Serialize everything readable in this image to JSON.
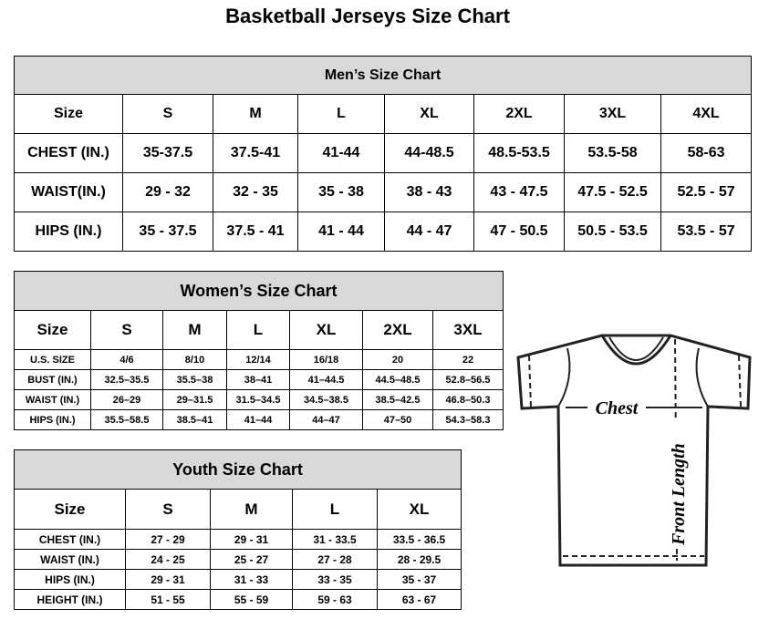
{
  "title": "Basketball Jerseys Size Chart",
  "men": {
    "heading": "Men’s Size Chart",
    "rows": [
      [
        "Size",
        "S",
        "M",
        "L",
        "XL",
        "2XL",
        "3XL",
        "4XL"
      ],
      [
        "CHEST (IN.)",
        "35-37.5",
        "37.5-41",
        "41-44",
        "44-48.5",
        "48.5-53.5",
        "53.5-58",
        "58-63"
      ],
      [
        "WAIST(IN.)",
        "29 - 32",
        "32 - 35",
        "35 - 38",
        "38 - 43",
        "43 - 47.5",
        "47.5 - 52.5",
        "52.5 - 57"
      ],
      [
        "HIPS (IN.)",
        "35 - 37.5",
        "37.5 - 41",
        "41 - 44",
        "44 - 47",
        "47 - 50.5",
        "50.5 - 53.5",
        "53.5 - 57"
      ]
    ]
  },
  "women": {
    "heading": "Women’s Size Chart",
    "rows": [
      [
        "Size",
        "S",
        "M",
        "L",
        "XL",
        "2XL",
        "3XL"
      ],
      [
        "U.S. SIZE",
        "4/6",
        "8/10",
        "12/14",
        "16/18",
        "20",
        "22"
      ],
      [
        "BUST (IN.)",
        "32.5–35.5",
        "35.5–38",
        "38–41",
        "41–44.5",
        "44.5–48.5",
        "52.8–56.5"
      ],
      [
        "WAIST (IN.)",
        "26–29",
        "29–31.5",
        "31.5–34.5",
        "34.5–38.5",
        "38.5–42.5",
        "46.8–50.3"
      ],
      [
        "HIPS (IN.)",
        "35.5–58.5",
        "38.5–41",
        "41–44",
        "44–47",
        "47–50",
        "54.3–58.3"
      ]
    ]
  },
  "youth": {
    "heading": "Youth Size Chart",
    "rows": [
      [
        "Size",
        "S",
        "M",
        "L",
        "XL"
      ],
      [
        "CHEST (IN.)",
        "27 - 29",
        "29 - 31",
        "31 - 33.5",
        "33.5 - 36.5"
      ],
      [
        "WAIST (IN.)",
        "24 - 25",
        "25 - 27",
        "27 - 28",
        "28 - 29.5"
      ],
      [
        "HIPS (IN.)",
        "29 - 31",
        "31 - 33",
        "33 - 35",
        "35 - 37"
      ],
      [
        "HEIGHT (IN.)",
        "51 - 55",
        "55 - 59",
        "59 - 63",
        "63 - 67"
      ]
    ]
  },
  "diagram": {
    "chest_label": "Chest",
    "length_label": "Front Length"
  }
}
